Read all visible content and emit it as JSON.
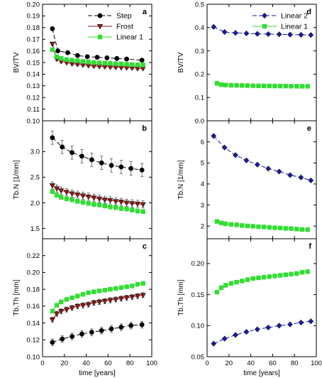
{
  "chart_data": [
    {
      "type": "line",
      "panel_label": "a",
      "ylabel": "BV/TV",
      "xlabel": "",
      "xlim": [
        0,
        100
      ],
      "ylim": [
        0.1,
        0.2
      ],
      "xticks": [
        0,
        20,
        40,
        60,
        80,
        100
      ],
      "yticks": [
        "0.10",
        "0.11",
        "0.12",
        "0.13",
        "0.14",
        "0.15",
        "0.16",
        "0.17",
        "0.18",
        "0.19",
        "0.20"
      ],
      "legend": [
        "Step",
        "Frost",
        "Linear 1"
      ],
      "series": [
        {
          "name": "Step",
          "color": "#000000",
          "marker": "circle",
          "dash": "6,3",
          "x": [
            9,
            14,
            23,
            32,
            41,
            50,
            59,
            68,
            77,
            91
          ],
          "y": [
            0.179,
            0.16,
            0.1585,
            0.156,
            0.155,
            0.1545,
            0.154,
            0.1535,
            0.153,
            0.152
          ],
          "err": []
        },
        {
          "name": "Frost",
          "color": "#8b1a1a",
          "marker": "tri-down",
          "dash": "none",
          "x": [
            9,
            13,
            17,
            22,
            27,
            32,
            37,
            42,
            47,
            52,
            57,
            62,
            67,
            72,
            77,
            82,
            87,
            92
          ],
          "y": [
            0.166,
            0.153,
            0.151,
            0.15,
            0.149,
            0.1485,
            0.148,
            0.1475,
            0.147,
            0.1468,
            0.1465,
            0.1462,
            0.146,
            0.1458,
            0.1456,
            0.1454,
            0.145,
            0.145
          ],
          "err": [
            0.0012,
            0.0012,
            0.0012,
            0.0012,
            0.0012,
            0.0012,
            0.0012,
            0.0012,
            0.0012,
            0.0012,
            0.0012,
            0.0012,
            0.0012,
            0.0012,
            0.0012,
            0.0012,
            0.0012,
            0.0012
          ]
        },
        {
          "name": "Linear 1",
          "color": "#33dd33",
          "marker": "square",
          "dash": "none",
          "x": [
            9,
            13,
            17,
            22,
            27,
            32,
            37,
            42,
            47,
            52,
            57,
            62,
            67,
            72,
            77,
            82,
            87,
            92
          ],
          "y": [
            0.161,
            0.155,
            0.1535,
            0.1525,
            0.152,
            0.1515,
            0.151,
            0.1505,
            0.15,
            0.1498,
            0.1495,
            0.1492,
            0.149,
            0.1488,
            0.1485,
            0.1483,
            0.148,
            0.148
          ],
          "err": []
        }
      ]
    },
    {
      "type": "line",
      "panel_label": "b",
      "ylabel": "Tb.N [1/mm]",
      "xlabel": "",
      "xlim": [
        0,
        100
      ],
      "ylim": [
        1.3,
        3.6
      ],
      "xticks": [
        0,
        20,
        40,
        60,
        80,
        100
      ],
      "yticks": [
        "1.5",
        "2.0",
        "2.5",
        "3.0"
      ],
      "series": [
        {
          "name": "Step",
          "color": "#000000",
          "marker": "circle",
          "dash": "6,3",
          "x": [
            9,
            18,
            27,
            36,
            45,
            54,
            63,
            72,
            81,
            91
          ],
          "y": [
            3.27,
            3.09,
            2.98,
            2.91,
            2.84,
            2.78,
            2.73,
            2.7,
            2.67,
            2.64
          ],
          "err": [
            0.13,
            0.13,
            0.13,
            0.13,
            0.13,
            0.13,
            0.13,
            0.13,
            0.13,
            0.13
          ]
        },
        {
          "name": "Frost",
          "color": "#8b1a1a",
          "marker": "tri-down",
          "dash": "none",
          "x": [
            9,
            13,
            17,
            22,
            27,
            32,
            37,
            42,
            47,
            52,
            57,
            62,
            67,
            72,
            77,
            82,
            87,
            92
          ],
          "y": [
            2.34,
            2.28,
            2.24,
            2.21,
            2.18,
            2.16,
            2.14,
            2.12,
            2.1,
            2.08,
            2.06,
            2.05,
            2.03,
            2.02,
            2.0,
            1.99,
            1.98,
            1.97
          ],
          "err": [
            0.07,
            0.07,
            0.07,
            0.07,
            0.07,
            0.07,
            0.07,
            0.07,
            0.07,
            0.07,
            0.07,
            0.07,
            0.07,
            0.07,
            0.07,
            0.07,
            0.07,
            0.07
          ]
        },
        {
          "name": "Linear 1",
          "color": "#33dd33",
          "marker": "square",
          "dash": "none",
          "x": [
            9,
            13,
            17,
            22,
            27,
            32,
            37,
            42,
            47,
            52,
            57,
            62,
            67,
            72,
            77,
            82,
            87,
            92
          ],
          "y": [
            2.22,
            2.15,
            2.11,
            2.08,
            2.06,
            2.03,
            2.01,
            1.99,
            1.97,
            1.96,
            1.94,
            1.92,
            1.91,
            1.89,
            1.88,
            1.86,
            1.84,
            1.83
          ],
          "err": [
            0.04,
            0.04,
            0.04,
            0.04,
            0.04,
            0.04,
            0.04,
            0.04,
            0.04,
            0.04,
            0.04,
            0.04,
            0.04,
            0.04,
            0.04,
            0.04,
            0.04,
            0.04
          ]
        }
      ]
    },
    {
      "type": "line",
      "panel_label": "c",
      "ylabel": "Tb.Th [mm]",
      "xlabel": "time [years]",
      "xlim": [
        0,
        100
      ],
      "ylim": [
        0.1,
        0.24
      ],
      "xticks": [
        0,
        20,
        40,
        60,
        80,
        100
      ],
      "yticks": [
        "0.10",
        "0.12",
        "0.14",
        "0.16",
        "0.18",
        "0.20",
        "0.22"
      ],
      "series": [
        {
          "name": "Step",
          "color": "#000000",
          "marker": "circle",
          "dash": "6,3",
          "x": [
            9,
            18,
            27,
            36,
            45,
            54,
            63,
            72,
            81,
            91
          ],
          "y": [
            0.117,
            0.121,
            0.124,
            0.127,
            0.129,
            0.131,
            0.133,
            0.135,
            0.137,
            0.138
          ],
          "err": [
            0.004,
            0.004,
            0.004,
            0.004,
            0.004,
            0.004,
            0.004,
            0.004,
            0.004,
            0.004
          ]
        },
        {
          "name": "Frost",
          "color": "#8b1a1a",
          "marker": "tri-down",
          "dash": "none",
          "x": [
            9,
            13,
            17,
            22,
            27,
            32,
            37,
            42,
            47,
            52,
            57,
            62,
            67,
            72,
            77,
            82,
            87,
            92
          ],
          "y": [
            0.144,
            0.151,
            0.154,
            0.156,
            0.158,
            0.16,
            0.161,
            0.162,
            0.164,
            0.165,
            0.166,
            0.167,
            0.168,
            0.169,
            0.17,
            0.171,
            0.172,
            0.173
          ],
          "err": [
            0.003,
            0.003,
            0.003,
            0.003,
            0.003,
            0.003,
            0.003,
            0.003,
            0.003,
            0.003,
            0.003,
            0.003,
            0.003,
            0.003,
            0.003,
            0.003,
            0.003,
            0.003
          ]
        },
        {
          "name": "Linear 1",
          "color": "#33dd33",
          "marker": "square",
          "dash": "none",
          "x": [
            9,
            13,
            17,
            22,
            27,
            32,
            37,
            42,
            47,
            52,
            57,
            62,
            67,
            72,
            77,
            82,
            87,
            92
          ],
          "y": [
            0.154,
            0.161,
            0.165,
            0.168,
            0.17,
            0.172,
            0.174,
            0.176,
            0.177,
            0.178,
            0.179,
            0.18,
            0.181,
            0.182,
            0.183,
            0.184,
            0.186,
            0.187
          ],
          "err": [
            0.002,
            0.002,
            0.002,
            0.002,
            0.002,
            0.002,
            0.002,
            0.002,
            0.002,
            0.002,
            0.002,
            0.002,
            0.002,
            0.002,
            0.002,
            0.002,
            0.002,
            0.002
          ]
        }
      ]
    },
    {
      "type": "line",
      "panel_label": "d",
      "ylabel": "BV/TV",
      "xlabel": "",
      "xlim": [
        0,
        100
      ],
      "ylim": [
        0,
        0.5
      ],
      "xticks": [
        0,
        20,
        40,
        60,
        80,
        100
      ],
      "yticks": [
        "0.0",
        "0.1",
        "0.2",
        "0.3",
        "0.4",
        "0.5"
      ],
      "legend": [
        "Linear 2",
        "Linear 1"
      ],
      "series": [
        {
          "name": "Linear 2",
          "color": "#1a1a9c",
          "marker": "diamond",
          "dash": "6,3",
          "x": [
            6,
            16,
            26,
            36,
            46,
            56,
            66,
            76,
            86,
            95
          ],
          "y": [
            0.403,
            0.381,
            0.377,
            0.375,
            0.373,
            0.372,
            0.371,
            0.37,
            0.369,
            0.368
          ],
          "err": []
        },
        {
          "name": "Linear 1",
          "color": "#33dd33",
          "marker": "square",
          "dash": "none",
          "x": [
            9,
            13,
            17,
            22,
            27,
            32,
            37,
            42,
            47,
            52,
            57,
            62,
            67,
            72,
            77,
            82,
            87,
            92
          ],
          "y": [
            0.161,
            0.155,
            0.1535,
            0.1525,
            0.152,
            0.1515,
            0.151,
            0.1505,
            0.15,
            0.1498,
            0.1495,
            0.1492,
            0.149,
            0.1488,
            0.1485,
            0.1483,
            0.148,
            0.148
          ],
          "err": []
        }
      ]
    },
    {
      "type": "line",
      "panel_label": "e",
      "ylabel": "Tb.N [1/mm]",
      "xlabel": "",
      "xlim": [
        0,
        100
      ],
      "ylim": [
        1.4,
        7.0
      ],
      "xticks": [
        0,
        20,
        40,
        60,
        80,
        100
      ],
      "yticks": [
        "2",
        "3",
        "4",
        "5",
        "6"
      ],
      "series": [
        {
          "name": "Linear 2",
          "color": "#1a1a9c",
          "marker": "diamond",
          "dash": "6,3",
          "x": [
            6,
            16,
            26,
            36,
            46,
            56,
            66,
            76,
            86,
            95
          ],
          "y": [
            6.28,
            5.73,
            5.37,
            5.12,
            4.92,
            4.73,
            4.59,
            4.42,
            4.31,
            4.17
          ],
          "err": []
        },
        {
          "name": "Linear 1",
          "color": "#33dd33",
          "marker": "square",
          "dash": "none",
          "x": [
            9,
            13,
            17,
            22,
            27,
            32,
            37,
            42,
            47,
            52,
            57,
            62,
            67,
            72,
            77,
            82,
            87,
            92
          ],
          "y": [
            2.22,
            2.15,
            2.11,
            2.08,
            2.06,
            2.03,
            2.01,
            1.99,
            1.97,
            1.96,
            1.94,
            1.92,
            1.91,
            1.89,
            1.88,
            1.86,
            1.84,
            1.83
          ],
          "err": []
        }
      ]
    },
    {
      "type": "line",
      "panel_label": "f",
      "ylabel": "Tb.Th [mm]",
      "xlabel": "time [years]",
      "xlim": [
        0,
        100
      ],
      "ylim": [
        0.05,
        0.24
      ],
      "xticks": [
        0,
        20,
        40,
        60,
        80,
        100
      ],
      "yticks": [
        "0.05",
        "0.10",
        "0.15",
        "0.20"
      ],
      "series": [
        {
          "name": "Linear 2",
          "color": "#1a1a9c",
          "marker": "diamond",
          "dash": "6,3",
          "x": [
            6,
            16,
            26,
            36,
            46,
            56,
            66,
            76,
            86,
            95
          ],
          "y": [
            0.071,
            0.079,
            0.085,
            0.09,
            0.094,
            0.097,
            0.1,
            0.102,
            0.105,
            0.107
          ],
          "err": []
        },
        {
          "name": "Linear 1",
          "color": "#33dd33",
          "marker": "square",
          "dash": "none",
          "x": [
            9,
            13,
            17,
            22,
            27,
            32,
            37,
            42,
            47,
            52,
            57,
            62,
            67,
            72,
            77,
            82,
            87,
            92
          ],
          "y": [
            0.154,
            0.161,
            0.165,
            0.168,
            0.17,
            0.172,
            0.174,
            0.176,
            0.177,
            0.178,
            0.179,
            0.18,
            0.181,
            0.182,
            0.183,
            0.184,
            0.186,
            0.187
          ],
          "err": []
        }
      ]
    }
  ]
}
